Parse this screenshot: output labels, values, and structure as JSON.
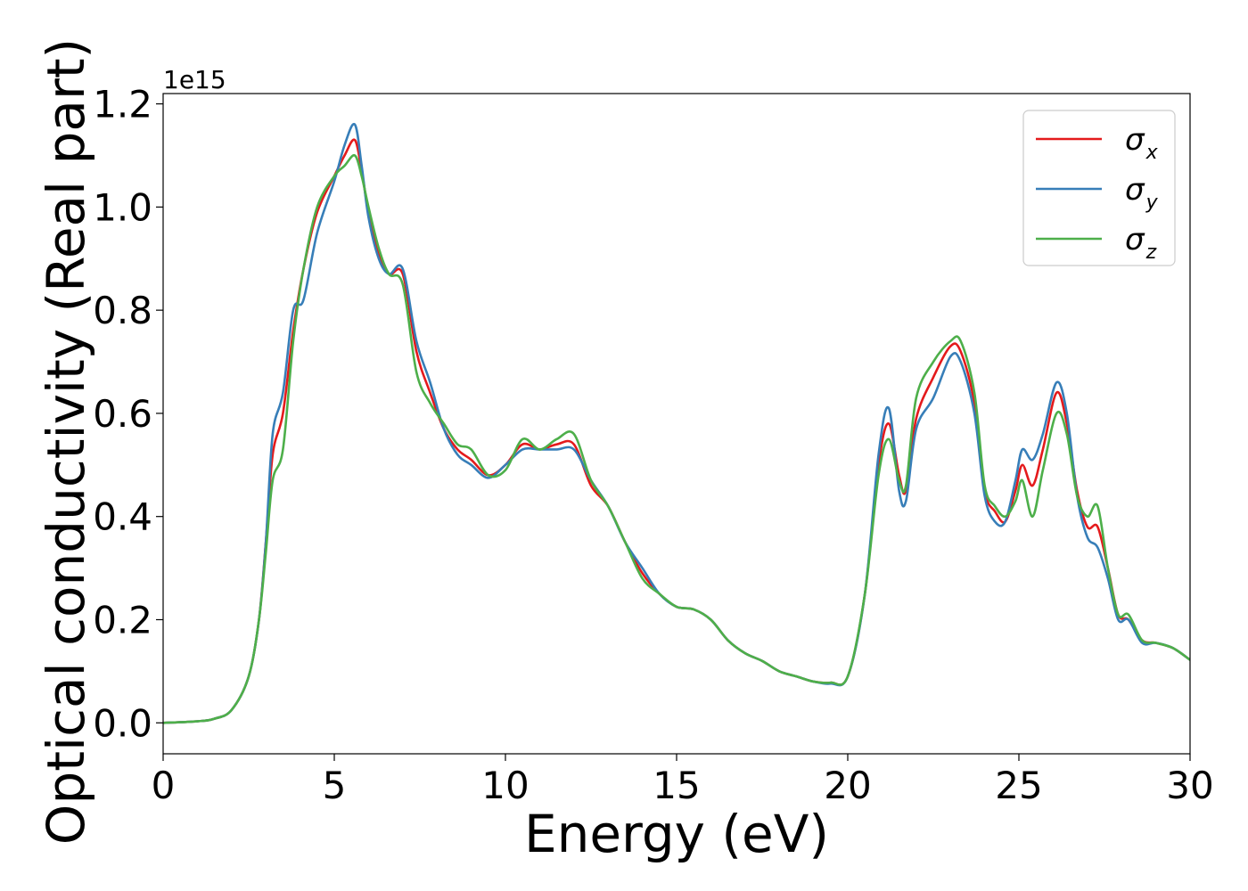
{
  "chart_data": {
    "type": "line",
    "xlabel": "Energy (eV)",
    "ylabel": "Optical conductivity (Real part)",
    "y_offset_text": "1e15",
    "y_multiplier": 1000000000000000.0,
    "xlim": [
      0,
      30
    ],
    "ylim": [
      -0.06,
      1.22
    ],
    "x_ticks": [
      0,
      5,
      10,
      15,
      20,
      25,
      30
    ],
    "x_tick_labels": [
      "0",
      "5",
      "10",
      "15",
      "20",
      "25",
      "30"
    ],
    "y_ticks": [
      0.0,
      0.2,
      0.4,
      0.6,
      0.8,
      1.0,
      1.2
    ],
    "y_tick_labels": [
      "0.0",
      "0.2",
      "0.4",
      "0.6",
      "0.8",
      "1.0",
      "1.2"
    ],
    "grid": false,
    "legend_position": "top-right",
    "series": [
      {
        "name": "σx",
        "symbol": "σ",
        "subscript": "x",
        "color": "#e41a1c",
        "x": [
          0,
          1,
          1.5,
          2,
          2.5,
          2.8,
          3.0,
          3.2,
          3.5,
          3.8,
          4.1,
          4.5,
          5.0,
          5.3,
          5.6,
          5.8,
          6.0,
          6.3,
          6.6,
          7.0,
          7.4,
          7.8,
          8.2,
          8.6,
          9.0,
          9.5,
          10.0,
          10.5,
          11.0,
          11.5,
          12.0,
          12.5,
          13.0,
          13.5,
          14.0,
          14.5,
          15.0,
          15.5,
          16.0,
          16.5,
          17.0,
          17.5,
          18.0,
          18.5,
          19.0,
          19.5,
          20.0,
          20.5,
          20.9,
          21.2,
          21.5,
          21.7,
          22.0,
          22.5,
          23.0,
          23.3,
          23.7,
          24.0,
          24.3,
          24.6,
          24.9,
          25.1,
          25.4,
          25.7,
          26.1,
          26.4,
          26.7,
          27.0,
          27.3,
          27.6,
          27.9,
          28.2,
          28.6,
          29.0,
          29.5,
          30.0
        ],
        "y": [
          0.0,
          0.003,
          0.008,
          0.025,
          0.09,
          0.2,
          0.35,
          0.52,
          0.6,
          0.76,
          0.88,
          0.99,
          1.06,
          1.1,
          1.13,
          1.07,
          0.99,
          0.91,
          0.87,
          0.87,
          0.72,
          0.64,
          0.57,
          0.53,
          0.51,
          0.48,
          0.5,
          0.54,
          0.53,
          0.54,
          0.54,
          0.46,
          0.42,
          0.35,
          0.29,
          0.25,
          0.225,
          0.22,
          0.2,
          0.16,
          0.135,
          0.12,
          0.1,
          0.09,
          0.08,
          0.078,
          0.09,
          0.25,
          0.5,
          0.58,
          0.48,
          0.45,
          0.59,
          0.67,
          0.73,
          0.72,
          0.62,
          0.45,
          0.41,
          0.39,
          0.45,
          0.5,
          0.46,
          0.53,
          0.64,
          0.58,
          0.45,
          0.38,
          0.38,
          0.3,
          0.21,
          0.2,
          0.16,
          0.155,
          0.145,
          0.122
        ]
      },
      {
        "name": "σy",
        "symbol": "σ",
        "subscript": "y",
        "color": "#377eb8",
        "x": [
          0,
          1,
          1.5,
          2,
          2.5,
          2.8,
          3.0,
          3.2,
          3.5,
          3.8,
          4.1,
          4.5,
          5.0,
          5.3,
          5.6,
          5.8,
          6.0,
          6.3,
          6.6,
          7.0,
          7.4,
          7.8,
          8.2,
          8.6,
          9.0,
          9.5,
          10.0,
          10.5,
          11.0,
          11.5,
          12.0,
          12.5,
          13.0,
          13.5,
          14.0,
          14.5,
          15.0,
          15.5,
          16.0,
          16.5,
          17.0,
          17.5,
          18.0,
          18.5,
          19.0,
          19.5,
          20.0,
          20.5,
          20.9,
          21.2,
          21.5,
          21.7,
          22.0,
          22.5,
          23.0,
          23.3,
          23.7,
          24.0,
          24.3,
          24.6,
          24.9,
          25.1,
          25.4,
          25.7,
          26.1,
          26.4,
          26.7,
          27.0,
          27.3,
          27.6,
          27.9,
          28.2,
          28.6,
          29.0,
          29.5,
          30.0
        ],
        "y": [
          0.0,
          0.003,
          0.008,
          0.025,
          0.09,
          0.2,
          0.35,
          0.56,
          0.64,
          0.8,
          0.82,
          0.95,
          1.05,
          1.12,
          1.16,
          1.08,
          0.98,
          0.9,
          0.87,
          0.88,
          0.74,
          0.66,
          0.57,
          0.52,
          0.5,
          0.475,
          0.5,
          0.53,
          0.53,
          0.53,
          0.53,
          0.47,
          0.42,
          0.35,
          0.3,
          0.25,
          0.225,
          0.22,
          0.2,
          0.16,
          0.135,
          0.12,
          0.1,
          0.09,
          0.08,
          0.076,
          0.09,
          0.25,
          0.52,
          0.61,
          0.45,
          0.43,
          0.57,
          0.63,
          0.71,
          0.7,
          0.6,
          0.44,
          0.39,
          0.39,
          0.47,
          0.53,
          0.51,
          0.56,
          0.66,
          0.6,
          0.44,
          0.36,
          0.34,
          0.28,
          0.2,
          0.2,
          0.155,
          0.155,
          0.145,
          0.122
        ]
      },
      {
        "name": "σz",
        "symbol": "σ",
        "subscript": "z",
        "color": "#4daf4a",
        "x": [
          0,
          1,
          1.5,
          2,
          2.5,
          2.8,
          3.0,
          3.2,
          3.5,
          3.8,
          4.1,
          4.5,
          5.0,
          5.3,
          5.6,
          5.8,
          6.0,
          6.3,
          6.6,
          7.0,
          7.4,
          7.8,
          8.2,
          8.6,
          9.0,
          9.5,
          10.0,
          10.5,
          11.0,
          11.5,
          12.0,
          12.5,
          13.0,
          13.5,
          14.0,
          14.5,
          15.0,
          15.5,
          16.0,
          16.5,
          17.0,
          17.5,
          18.0,
          18.5,
          19.0,
          19.5,
          20.0,
          20.5,
          20.9,
          21.2,
          21.5,
          21.7,
          22.0,
          22.5,
          23.0,
          23.3,
          23.7,
          24.0,
          24.3,
          24.6,
          24.9,
          25.1,
          25.4,
          25.7,
          26.1,
          26.4,
          26.7,
          27.0,
          27.3,
          27.6,
          27.9,
          28.2,
          28.6,
          29.0,
          29.5,
          30.0
        ],
        "y": [
          0.0,
          0.003,
          0.008,
          0.025,
          0.09,
          0.2,
          0.33,
          0.47,
          0.53,
          0.74,
          0.88,
          1.0,
          1.06,
          1.08,
          1.1,
          1.06,
          1.0,
          0.92,
          0.87,
          0.85,
          0.68,
          0.62,
          0.58,
          0.54,
          0.53,
          0.48,
          0.49,
          0.55,
          0.53,
          0.55,
          0.56,
          0.47,
          0.42,
          0.35,
          0.28,
          0.25,
          0.225,
          0.22,
          0.2,
          0.16,
          0.135,
          0.12,
          0.1,
          0.09,
          0.08,
          0.078,
          0.09,
          0.25,
          0.48,
          0.55,
          0.47,
          0.46,
          0.63,
          0.7,
          0.74,
          0.74,
          0.64,
          0.46,
          0.42,
          0.4,
          0.43,
          0.47,
          0.4,
          0.49,
          0.6,
          0.56,
          0.44,
          0.4,
          0.42,
          0.3,
          0.21,
          0.21,
          0.16,
          0.155,
          0.145,
          0.122
        ]
      }
    ]
  }
}
